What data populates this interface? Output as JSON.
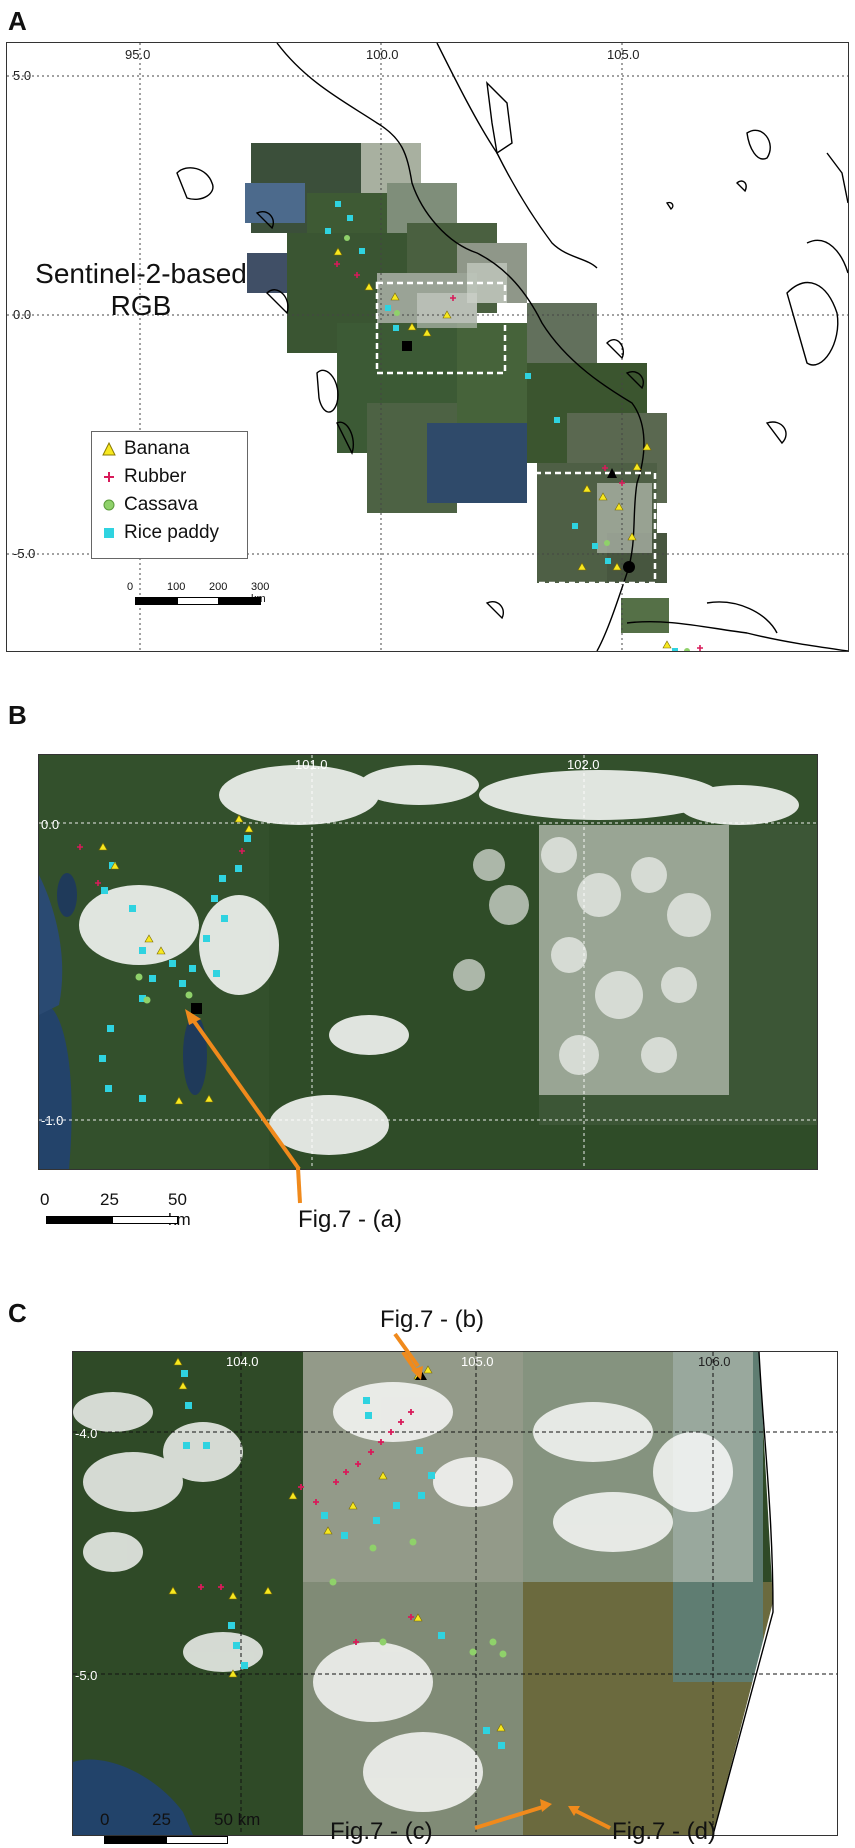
{
  "panels": {
    "a": {
      "letter": "A"
    },
    "b": {
      "letter": "B"
    },
    "c": {
      "letter": "C"
    }
  },
  "panel_a": {
    "title_line1": "Sentinel-2-based",
    "title_line2": "RGB",
    "lon_ticks": [
      "95.0",
      "100.0",
      "105.0"
    ],
    "lat_ticks": [
      "5.0",
      "0.0",
      "-5.0"
    ],
    "scale": {
      "labels": [
        "0",
        "100",
        "200",
        "300 km"
      ]
    },
    "legend": {
      "items": [
        {
          "label": "Banana",
          "symbol": "triangle",
          "color": "#f7e81f"
        },
        {
          "label": "Rubber",
          "symbol": "plus",
          "color": "#d81b5a"
        },
        {
          "label": "Cassava",
          "symbol": "circle",
          "color": "#8fd16a"
        },
        {
          "label": "Rice paddy",
          "symbol": "square",
          "color": "#2fd3e0"
        }
      ]
    }
  },
  "panel_b": {
    "lon_ticks": [
      "101.0",
      "102.0"
    ],
    "lat_ticks": [
      "0.0",
      "-1.0"
    ],
    "scale": {
      "labels": [
        "0",
        "25",
        "50 km"
      ]
    },
    "callout": "Fig.7 - (a)"
  },
  "panel_c": {
    "lon_ticks": [
      "104.0",
      "105.0",
      "106.0"
    ],
    "lat_ticks": [
      "-4.0",
      "-5.0"
    ],
    "scale": {
      "labels": [
        "0",
        "25",
        "50 km"
      ]
    },
    "callouts": [
      "Fig.7 - (b)",
      "Fig.7 - (c)",
      "Fig.7 - (d)"
    ]
  },
  "colors": {
    "banana": "#f7e81f",
    "rubber": "#d81b5a",
    "cassava": "#8fd16a",
    "rice": "#2fd3e0",
    "arrow": "#f08a1c"
  }
}
